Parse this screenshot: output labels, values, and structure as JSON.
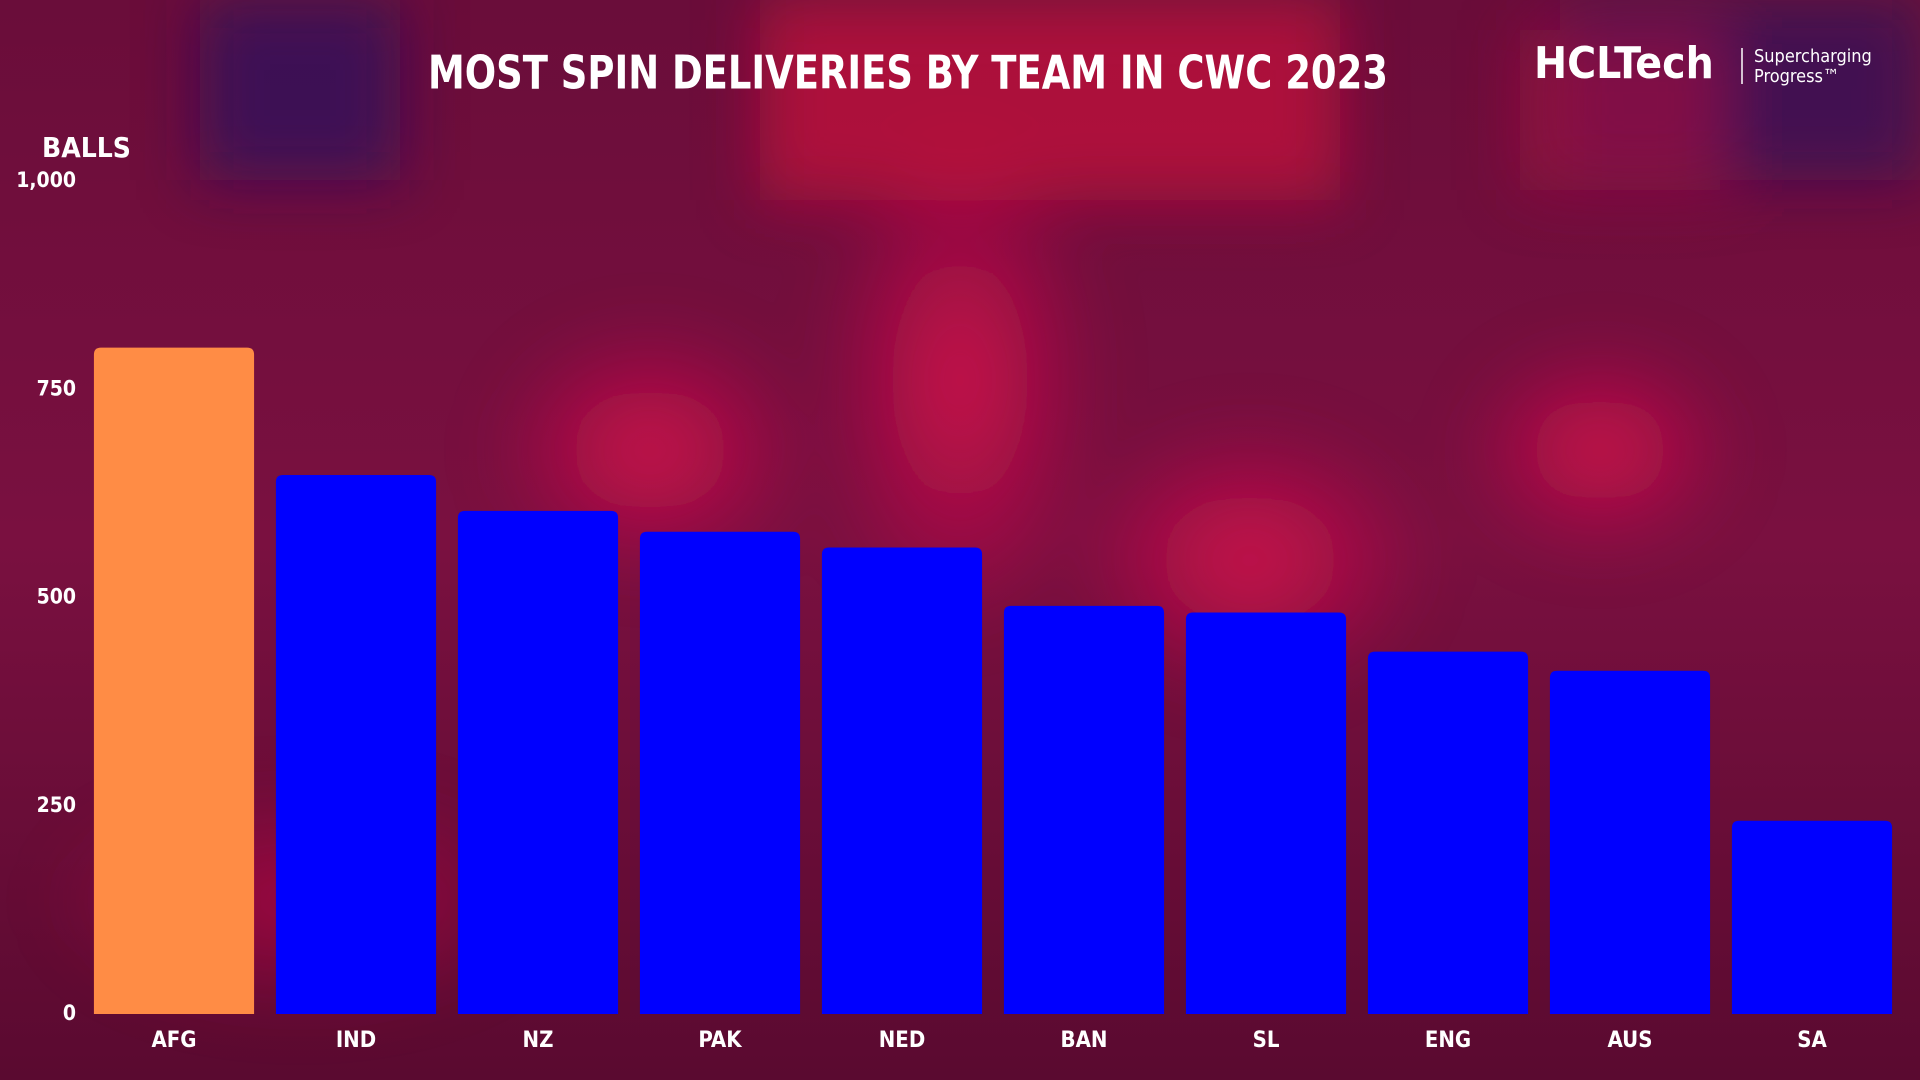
{
  "chart_data": {
    "type": "bar",
    "title": "MOST SPIN DELIVERIES BY TEAM IN CWC 2023",
    "y_label": "BALLS",
    "categories": [
      "AFG",
      "IND",
      "NZ",
      "PAK",
      "NED",
      "BAN",
      "SL",
      "ENG",
      "AUS",
      "SA"
    ],
    "values": [
      800,
      647,
      604,
      579,
      560,
      490,
      482,
      435,
      412,
      232
    ],
    "colors": [
      "#ff8c45",
      "#0000ff",
      "#0000ff",
      "#0000ff",
      "#0000ff",
      "#0000ff",
      "#0000ff",
      "#0000ff",
      "#0000ff",
      "#0000ff"
    ],
    "ylim": [
      0,
      1000
    ],
    "yticks": [
      0,
      250,
      500,
      750,
      {
        "value": 1000,
        "label": "1,000"
      }
    ],
    "grid": false
  },
  "brand": {
    "name": "HCLTech",
    "tagline": [
      "Supercharging",
      "Progress™"
    ]
  }
}
